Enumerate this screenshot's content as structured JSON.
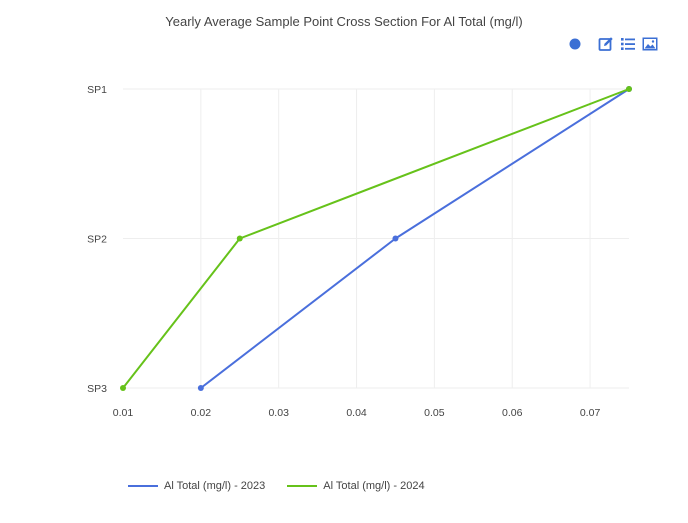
{
  "toolbar": {
    "icons": [
      "dot-icon",
      "edit-icon",
      "list-icon",
      "image-icon"
    ],
    "accent": "#3b6fd4"
  },
  "chart_data": {
    "type": "line",
    "title": "Yearly Average Sample Point Cross Section For Al Total (mg/l)",
    "xlabel": "",
    "ylabel": "",
    "xlim": [
      0.01,
      0.075
    ],
    "x_ticks": [
      0.01,
      0.02,
      0.03,
      0.04,
      0.05,
      0.06,
      0.07
    ],
    "categories": [
      "SP1",
      "SP2",
      "SP3"
    ],
    "grid": true,
    "legend_position": "bottom-left",
    "series": [
      {
        "name": "Al Total (mg/l) - 2023",
        "color": "#4a6fdc",
        "points": [
          {
            "x": 0.075,
            "y": "SP1"
          },
          {
            "x": 0.045,
            "y": "SP2"
          },
          {
            "x": 0.02,
            "y": "SP3"
          }
        ]
      },
      {
        "name": "Al Total (mg/l) - 2024",
        "color": "#66c21a",
        "points": [
          {
            "x": 0.075,
            "y": "SP1"
          },
          {
            "x": 0.025,
            "y": "SP2"
          },
          {
            "x": 0.01,
            "y": "SP3"
          }
        ]
      }
    ]
  }
}
